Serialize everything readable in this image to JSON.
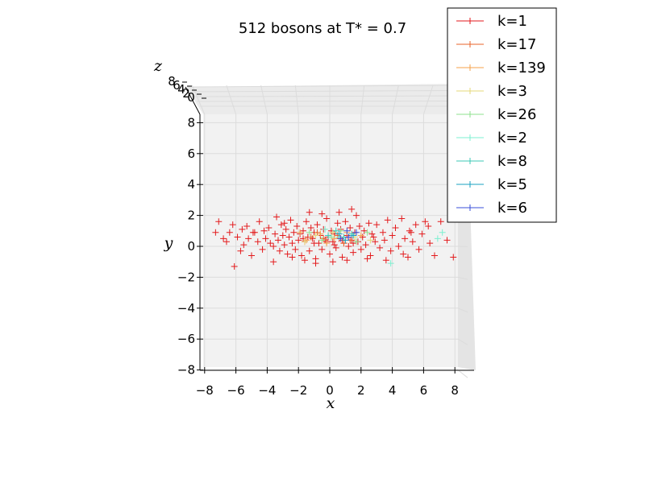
{
  "chart_data": {
    "type": "scatter",
    "projection": "3d",
    "title": "512 bosons at T* = 0.7",
    "xlabel": "x",
    "ylabel": "y",
    "zlabel": "z",
    "xlim": [
      -8,
      8
    ],
    "ylim": [
      -8,
      8
    ],
    "zlim": [
      -8,
      8
    ],
    "xticks": [
      "−8",
      "−6",
      "−4",
      "−2",
      "0",
      "2",
      "4",
      "6",
      "8"
    ],
    "yticks": [
      "−8",
      "−6",
      "−4",
      "−2",
      "0",
      "2",
      "4",
      "6",
      "8"
    ],
    "zticks_visible": [
      "8",
      "6",
      "4",
      "2",
      "0"
    ],
    "grid": true,
    "marker": "+",
    "legend": {
      "placement": "top-right"
    },
    "series": [
      {
        "name": "k=1",
        "color": "#e31a1c",
        "points": [
          [
            -7.3,
            0.9
          ],
          [
            -7.1,
            1.6
          ],
          [
            -6.6,
            0.3
          ],
          [
            -6.4,
            0.9
          ],
          [
            -6.2,
            1.4
          ],
          [
            -6.1,
            -1.3
          ],
          [
            -5.9,
            0.6
          ],
          [
            -5.7,
            -0.3
          ],
          [
            -5.5,
            0.1
          ],
          [
            -5.3,
            1.3
          ],
          [
            -5.2,
            0.5
          ],
          [
            -5.0,
            -0.6
          ],
          [
            -4.8,
            0.9
          ],
          [
            -4.6,
            0.3
          ],
          [
            -4.5,
            1.6
          ],
          [
            -4.3,
            -0.2
          ],
          [
            -4.2,
            1.0
          ],
          [
            -4.1,
            0.5
          ],
          [
            -3.9,
            1.2
          ],
          [
            -3.8,
            0.2
          ],
          [
            -3.6,
            -1.0
          ],
          [
            -3.5,
            0.8
          ],
          [
            -3.4,
            1.9
          ],
          [
            -3.3,
            0.4
          ],
          [
            -3.2,
            -0.3
          ],
          [
            -3.1,
            1.4
          ],
          [
            -3.0,
            0.7
          ],
          [
            -2.9,
            0.1
          ],
          [
            -2.8,
            1.1
          ],
          [
            -2.7,
            -0.5
          ],
          [
            -2.6,
            0.6
          ],
          [
            -2.5,
            1.7
          ],
          [
            -2.4,
            0.2
          ],
          [
            -2.3,
            0.9
          ],
          [
            -2.2,
            -0.2
          ],
          [
            -2.1,
            1.3
          ],
          [
            -2.0,
            0.4
          ],
          [
            -1.9,
            0.8
          ],
          [
            -1.8,
            -0.6
          ],
          [
            -1.7,
            1.0
          ],
          [
            -1.6,
            0.3
          ],
          [
            -1.5,
            1.6
          ],
          [
            -1.4,
            0.6
          ],
          [
            -1.3,
            -0.3
          ],
          [
            -1.2,
            1.2
          ],
          [
            -1.1,
            0.5
          ],
          [
            -1.0,
            0.9
          ],
          [
            -0.9,
            -0.8
          ],
          [
            -0.8,
            1.4
          ],
          [
            -0.7,
            0.2
          ],
          [
            -0.6,
            0.7
          ],
          [
            -0.5,
            -0.2
          ],
          [
            -0.4,
            1.1
          ],
          [
            -0.3,
            0.4
          ],
          [
            -0.2,
            1.8
          ],
          [
            -0.1,
            0.6
          ],
          [
            0.0,
            -0.5
          ],
          [
            0.1,
            1.0
          ],
          [
            0.2,
            0.3
          ],
          [
            0.3,
            0.8
          ],
          [
            0.4,
            -0.1
          ],
          [
            0.5,
            1.5
          ],
          [
            0.6,
            0.5
          ],
          [
            0.7,
            1.1
          ],
          [
            0.8,
            -0.7
          ],
          [
            0.9,
            0.2
          ],
          [
            1.0,
            1.6
          ],
          [
            1.1,
            0.7
          ],
          [
            1.2,
            0.0
          ],
          [
            1.3,
            1.2
          ],
          [
            1.4,
            0.4
          ],
          [
            1.5,
            -0.4
          ],
          [
            1.6,
            0.9
          ],
          [
            1.7,
            2.0
          ],
          [
            1.8,
            0.3
          ],
          [
            1.9,
            1.3
          ],
          [
            2.0,
            -0.2
          ],
          [
            2.1,
            0.6
          ],
          [
            2.2,
            1.0
          ],
          [
            2.3,
            0.1
          ],
          [
            2.5,
            1.5
          ],
          [
            2.6,
            -0.6
          ],
          [
            2.7,
            0.8
          ],
          [
            2.9,
            0.3
          ],
          [
            3.0,
            1.4
          ],
          [
            3.2,
            -0.1
          ],
          [
            3.4,
            0.9
          ],
          [
            3.5,
            0.4
          ],
          [
            3.7,
            1.7
          ],
          [
            3.9,
            -0.3
          ],
          [
            4.0,
            0.7
          ],
          [
            4.2,
            1.2
          ],
          [
            4.4,
            0.0
          ],
          [
            4.6,
            1.8
          ],
          [
            4.8,
            0.5
          ],
          [
            5.0,
            -0.7
          ],
          [
            5.1,
            1.0
          ],
          [
            5.3,
            0.3
          ],
          [
            5.5,
            1.4
          ],
          [
            5.7,
            -0.2
          ],
          [
            5.9,
            0.8
          ],
          [
            6.1,
            1.6
          ],
          [
            6.4,
            0.2
          ],
          [
            6.7,
            -0.6
          ],
          [
            7.1,
            1.6
          ],
          [
            7.5,
            0.4
          ],
          [
            7.9,
            -0.7
          ],
          [
            -1.6,
            -0.9
          ],
          [
            -0.9,
            -1.1
          ],
          [
            0.2,
            -1.0
          ],
          [
            1.1,
            -0.9
          ],
          [
            -2.4,
            -0.7
          ],
          [
            2.4,
            -0.8
          ],
          [
            -3.6,
            0.0
          ],
          [
            3.6,
            -0.9
          ],
          [
            -0.5,
            2.1
          ],
          [
            0.6,
            2.2
          ],
          [
            1.4,
            2.4
          ],
          [
            -1.3,
            2.2
          ],
          [
            -4.9,
            0.9
          ],
          [
            5.2,
            0.9
          ],
          [
            -1.0,
            0.2
          ],
          [
            0.3,
            0.1
          ],
          [
            1.5,
            0.2
          ],
          [
            -0.2,
            0.3
          ],
          [
            0.8,
            0.4
          ],
          [
            -1.7,
            0.5
          ],
          [
            2.8,
            0.6
          ],
          [
            -2.9,
            1.5
          ],
          [
            6.3,
            1.3
          ],
          [
            -5.6,
            1.1
          ],
          [
            4.7,
            -0.5
          ],
          [
            -6.8,
            0.5
          ]
        ]
      },
      {
        "name": "k=17",
        "color": "#e8632a",
        "points": [
          [
            -1.2,
            0.6
          ],
          [
            -0.4,
            0.5
          ],
          [
            0.5,
            0.7
          ],
          [
            1.3,
            0.4
          ],
          [
            -0.8,
            0.9
          ],
          [
            0.9,
            0.2
          ]
        ]
      },
      {
        "name": "k=139",
        "color": "#f5a04a",
        "points": [
          [
            -1.5,
            0.4
          ],
          [
            -0.6,
            0.8
          ],
          [
            0.3,
            0.5
          ],
          [
            1.1,
            0.9
          ],
          [
            -0.2,
            0.2
          ],
          [
            2.0,
            0.7
          ],
          [
            -1.9,
            0.9
          ]
        ]
      },
      {
        "name": "k=3",
        "color": "#e6d87a",
        "points": [
          [
            -0.9,
            0.7
          ],
          [
            0.2,
            0.9
          ],
          [
            1.6,
            0.6
          ],
          [
            -1.6,
            0.3
          ],
          [
            2.6,
            0.4
          ]
        ]
      },
      {
        "name": "k=26",
        "color": "#8ee08e",
        "points": [
          [
            -1.3,
            0.9
          ],
          [
            0.1,
            0.6
          ],
          [
            0.7,
            1.0
          ],
          [
            1.7,
            0.3
          ],
          [
            -0.5,
            0.4
          ],
          [
            2.4,
            0.9
          ]
        ]
      },
      {
        "name": "k=2",
        "color": "#7cf0d0",
        "points": [
          [
            3.9,
            -1.1
          ],
          [
            6.9,
            0.5
          ],
          [
            7.2,
            0.9
          ],
          [
            -0.3,
            1.1
          ],
          [
            0.6,
            0.6
          ]
        ]
      },
      {
        "name": "k=8",
        "color": "#3cc8b4",
        "points": [
          [
            0.9,
            0.6
          ],
          [
            1.4,
            0.8
          ],
          [
            -0.1,
            0.7
          ],
          [
            0.4,
            1.0
          ]
        ]
      },
      {
        "name": "k=5",
        "color": "#1aa0c0",
        "points": [
          [
            1.0,
            0.4
          ],
          [
            1.5,
            0.7
          ],
          [
            0.6,
            0.8
          ]
        ]
      },
      {
        "name": "k=6",
        "color": "#3a4fd8",
        "points": [
          [
            1.2,
            0.6
          ],
          [
            0.7,
            0.5
          ],
          [
            1.7,
            0.9
          ],
          [
            1.1,
            1.0
          ]
        ]
      }
    ]
  }
}
